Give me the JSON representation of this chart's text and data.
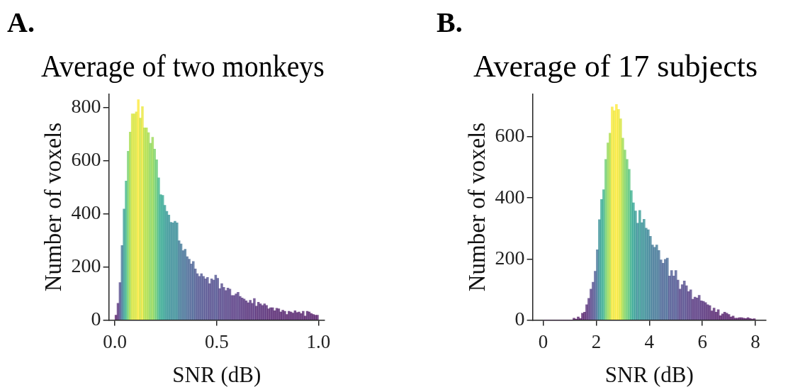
{
  "chart_data": [
    {
      "type": "histogram",
      "title": "Average of two monkeys",
      "xlabel": "SNR (dB)",
      "ylabel": "Number of voxels",
      "annotations": [
        "A."
      ],
      "bins": [
        0,
        0.01,
        0.02,
        0.03,
        0.04,
        0.05,
        0.06,
        0.07,
        0.08,
        0.09,
        0.1,
        0.11,
        0.12,
        0.13,
        0.14,
        0.15,
        0.16,
        0.17,
        0.18,
        0.19,
        0.2,
        0.21,
        0.22,
        0.23,
        0.24,
        0.25,
        0.26,
        0.27,
        0.28,
        0.29,
        0.3,
        0.31,
        0.32,
        0.33,
        0.34,
        0.35,
        0.36,
        0.37,
        0.38,
        0.39,
        0.4,
        0.41,
        0.42,
        0.43,
        0.44,
        0.45,
        0.46,
        0.47,
        0.48,
        0.49,
        0.5,
        0.51,
        0.52,
        0.53,
        0.54,
        0.55,
        0.56,
        0.57,
        0.58,
        0.59,
        0.6,
        0.61,
        0.62,
        0.63,
        0.64,
        0.65,
        0.66,
        0.67,
        0.68,
        0.69,
        0.7,
        0.71,
        0.72,
        0.73,
        0.74,
        0.75,
        0.76,
        0.77,
        0.78,
        0.79,
        0.8,
        0.81,
        0.82,
        0.83,
        0.84,
        0.85,
        0.86,
        0.87,
        0.88,
        0.89,
        0.9,
        0.91,
        0.92,
        0.93,
        0.94,
        0.95,
        0.96,
        0.97,
        0.98,
        0.99,
        1
      ],
      "values": [
        18,
        63,
        141,
        280,
        418,
        523,
        635,
        707,
        776,
        776,
        783,
        829,
        760,
        803,
        723,
        723,
        705,
        665,
        688,
        643,
        603,
        535,
        472,
        469,
        432,
        409,
        395,
        368,
        366,
        372,
        366,
        298,
        286,
        261,
        266,
        238,
        229,
        211,
        220,
        192,
        174,
        164,
        174,
        164,
        155,
        160,
        137,
        155,
        150,
        169,
        157,
        118,
        137,
        123,
        111,
        120,
        116,
        92,
        92,
        98,
        104,
        89,
        83,
        79,
        72,
        65,
        74,
        63,
        81,
        52,
        67,
        61,
        55,
        61,
        55,
        42,
        46,
        46,
        35,
        44,
        42,
        30,
        37,
        33,
        21,
        33,
        30,
        26,
        35,
        28,
        30,
        24,
        33,
        15,
        33,
        30,
        24,
        21,
        18,
        18
      ],
      "xlim": [
        -0.03,
        1.03
      ],
      "xticks": [
        {
          "value": 0,
          "label": "0.0"
        },
        {
          "value": 0.5,
          "label": "0.5"
        },
        {
          "value": 1,
          "label": "1.0"
        }
      ],
      "ylim": [
        0,
        850
      ],
      "yticks": [
        0,
        200,
        400,
        600,
        800
      ],
      "grid": false,
      "legend": false
    },
    {
      "type": "histogram",
      "title": "Average of 17 subjects",
      "xlabel": "SNR (dB)",
      "ylabel": "Number of voxels",
      "annotations": [
        "B."
      ],
      "bins": [
        0,
        0.08,
        0.16,
        0.24,
        0.32,
        0.4,
        0.48,
        0.56,
        0.64,
        0.72,
        0.8,
        0.88,
        0.96,
        1.04,
        1.12,
        1.2,
        1.28,
        1.36,
        1.44,
        1.52,
        1.6,
        1.68,
        1.76,
        1.84,
        1.92,
        2,
        2.08,
        2.16,
        2.24,
        2.32,
        2.4,
        2.48,
        2.56,
        2.64,
        2.72,
        2.8,
        2.88,
        2.96,
        3.04,
        3.12,
        3.2,
        3.28,
        3.36,
        3.44,
        3.52,
        3.6,
        3.68,
        3.76,
        3.84,
        3.92,
        4,
        4.08,
        4.16,
        4.24,
        4.32,
        4.4,
        4.48,
        4.56,
        4.64,
        4.72,
        4.8,
        4.88,
        4.96,
        5.04,
        5.12,
        5.2,
        5.28,
        5.36,
        5.44,
        5.52,
        5.6,
        5.68,
        5.76,
        5.84,
        5.92,
        6,
        6.08,
        6.16,
        6.24,
        6.32,
        6.4,
        6.48,
        6.56,
        6.64,
        6.72,
        6.8,
        6.88,
        6.96,
        7.04,
        7.12,
        7.2,
        7.28,
        7.36,
        7.44,
        7.52,
        7.6,
        7.68,
        7.76,
        7.84,
        7.92,
        8
      ],
      "values": [
        0,
        0,
        0,
        0,
        0,
        0,
        0,
        0,
        0,
        0,
        0,
        0,
        0,
        0,
        6,
        3,
        10,
        5,
        22,
        26,
        50,
        71,
        101,
        124,
        160,
        230,
        329,
        395,
        427,
        526,
        580,
        612,
        698,
        686,
        706,
        690,
        659,
        596,
        557,
        526,
        494,
        424,
        384,
        357,
        317,
        359,
        319,
        330,
        301,
        296,
        274,
        246,
        238,
        246,
        228,
        197,
        186,
        199,
        203,
        144,
        162,
        144,
        162,
        131,
        101,
        116,
        128,
        112,
        93,
        99,
        68,
        75,
        72,
        81,
        63,
        61,
        57,
        50,
        47,
        30,
        39,
        26,
        34,
        14,
        20,
        26,
        22,
        18,
        10,
        13,
        6,
        6,
        8,
        8,
        6,
        5,
        8,
        5,
        3,
        4
      ],
      "xlim": [
        -0.4,
        8.4
      ],
      "xticks": [
        0,
        2,
        4,
        6,
        8
      ],
      "ylim": [
        0,
        740
      ],
      "yticks": [
        0,
        200,
        400,
        600
      ],
      "grid": false,
      "legend": false
    }
  ]
}
